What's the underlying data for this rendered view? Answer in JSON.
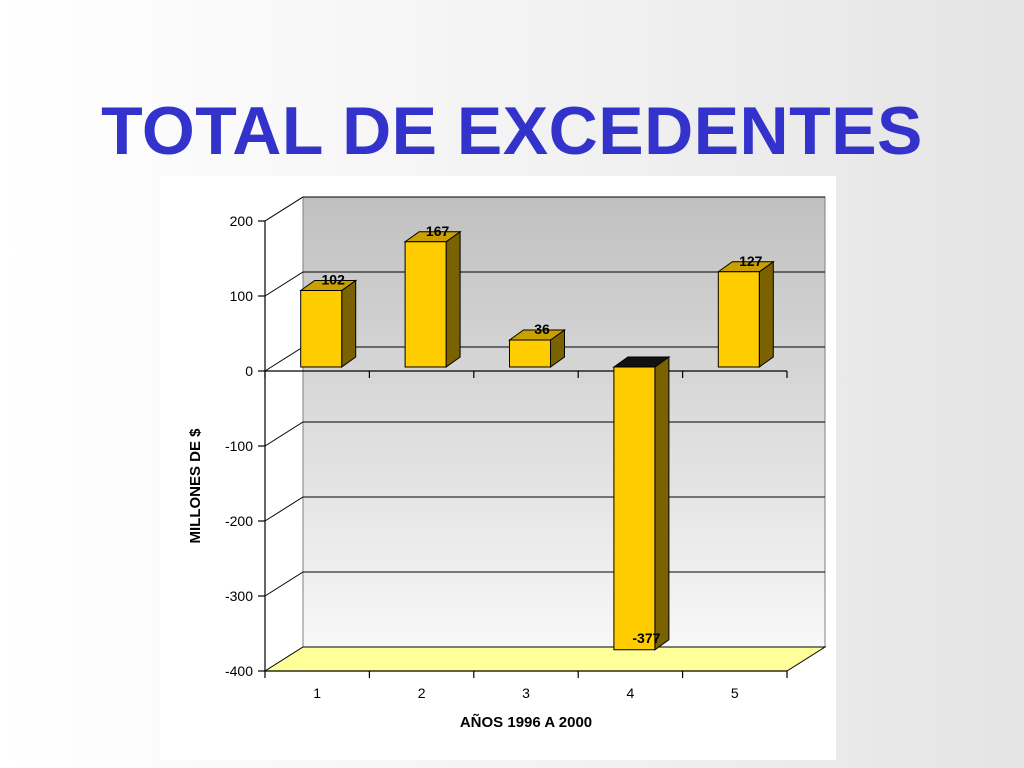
{
  "slide": {
    "title": "TOTAL DE EXCEDENTES"
  },
  "chart_data": {
    "type": "bar",
    "categories": [
      "1",
      "2",
      "3",
      "4",
      "5"
    ],
    "values": [
      102,
      167,
      36,
      -377,
      127
    ],
    "data_labels": [
      "102",
      "167",
      "36",
      "-377",
      "127"
    ],
    "xlabel": "AÑOS 1996 A 2000",
    "ylabel": "MILLONES DE $",
    "ylim": [
      -400,
      200
    ],
    "yticks": [
      200,
      100,
      0,
      -100,
      -200,
      -300,
      -400
    ],
    "ytick_labels": [
      "200",
      "100",
      "0",
      "-100",
      "-200",
      "-300",
      "-400"
    ],
    "style": "3d-column",
    "grid": true,
    "legend": "none",
    "colors": {
      "bar_front": "#ffcc00",
      "bar_side": "#7a6200",
      "bar_top": "#c9a000",
      "bar_top_negative": "#111111",
      "back_wall": "#c0c0c0",
      "side_wall": "#ffffff",
      "floor": "#ffff99",
      "gridline": "#000000",
      "axis_text": "#000000"
    }
  }
}
